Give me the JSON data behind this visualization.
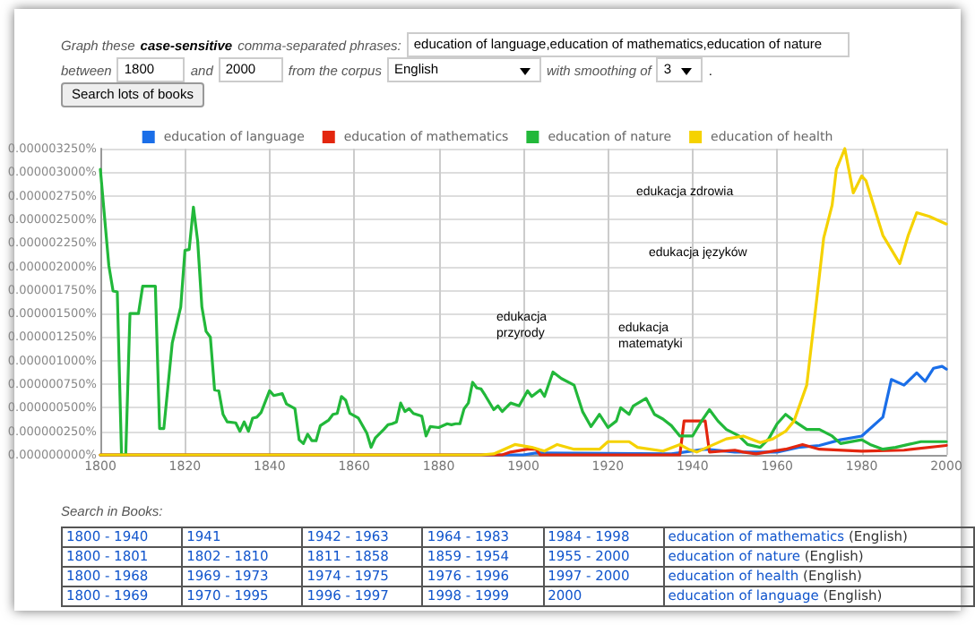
{
  "chart_data": {
    "type": "line",
    "xlim": [
      1800,
      2000
    ],
    "xticks": [
      1800,
      1820,
      1840,
      1860,
      1880,
      1900,
      1920,
      1940,
      1960,
      1980,
      2000
    ],
    "ylim": [
      0,
      3.25e-06
    ],
    "yticks": [
      {
        "value": 0,
        "label": "0.000000000%"
      },
      {
        "value": 2.5e-07,
        "label": "0.000000250%"
      },
      {
        "value": 5e-07,
        "label": "0.000000500%"
      },
      {
        "value": 7.5e-07,
        "label": "0.000000750%"
      },
      {
        "value": 1e-06,
        "label": "0.000001000%"
      },
      {
        "value": 1.25e-06,
        "label": "0.000001250%"
      },
      {
        "value": 1.5e-06,
        "label": "0.000001500%"
      },
      {
        "value": 1.75e-06,
        "label": "0.000001750%"
      },
      {
        "value": 2e-06,
        "label": "0.000002000%"
      },
      {
        "value": 2.25e-06,
        "label": "0.000002250%"
      },
      {
        "value": 2.5e-06,
        "label": "0.000002500%"
      },
      {
        "value": 2.75e-06,
        "label": "0.000002750%"
      },
      {
        "value": 3e-06,
        "label": "0.000003000%"
      },
      {
        "value": 3.25e-06,
        "label": "0.000003250%"
      }
    ],
    "grid": true,
    "legend": "top",
    "marker": "none",
    "line_style": "solid",
    "series": [
      {
        "name": "education of language",
        "color": "#1a6ee8",
        "x": [
          1800,
          1900,
          1903,
          1935,
          1943,
          1950,
          1960,
          1965,
          1970,
          1975,
          1980,
          1985,
          1987,
          1990,
          1993,
          1995,
          1997,
          1999,
          2000
        ],
        "values": [
          0,
          0,
          2e-08,
          1e-08,
          6e-08,
          3e-08,
          3e-08,
          8e-08,
          1e-07,
          1.6e-07,
          2e-07,
          4e-07,
          8e-07,
          7.4e-07,
          8.7e-07,
          7.8e-07,
          9.2e-07,
          9.4e-07,
          9.1e-07
        ]
      },
      {
        "name": "education of mathematics",
        "color": "#e3260e",
        "x": [
          1800,
          1895,
          1897,
          1901,
          1903,
          1904,
          1937,
          1938,
          1943,
          1944,
          1950,
          1952,
          1955,
          1962,
          1966,
          1970,
          1980,
          1990,
          2000
        ],
        "values": [
          0,
          0,
          3e-08,
          6e-08,
          6e-08,
          0,
          0,
          3.6e-07,
          3.6e-07,
          3e-08,
          5e-08,
          3e-08,
          1e-08,
          6e-08,
          1.1e-07,
          6e-08,
          4e-08,
          5e-08,
          1e-07
        ]
      },
      {
        "name": "education of nature",
        "color": "#22b83a",
        "x": [
          1800,
          1802,
          1803,
          1804,
          1805,
          1806,
          1807,
          1809,
          1810,
          1813,
          1814,
          1815,
          1817,
          1819,
          1820,
          1821,
          1822,
          1823,
          1824,
          1825,
          1826,
          1827,
          1828,
          1829,
          1830,
          1832,
          1833,
          1834,
          1835,
          1836,
          1837,
          1838,
          1840,
          1841,
          1843,
          1844,
          1846,
          1847,
          1848,
          1849,
          1850,
          1851,
          1852,
          1854,
          1855,
          1856,
          1857,
          1858,
          1859,
          1861,
          1863,
          1864,
          1865,
          1867,
          1868,
          1869,
          1870,
          1871,
          1872,
          1873,
          1874,
          1876,
          1877,
          1878,
          1880,
          1882,
          1883,
          1884,
          1885,
          1886,
          1887,
          1888,
          1889,
          1890,
          1891,
          1893,
          1894,
          1895,
          1897,
          1899,
          1901,
          1902,
          1904,
          1905,
          1907,
          1909,
          1912,
          1914,
          1916,
          1918,
          1920,
          1922,
          1923,
          1925,
          1926,
          1929,
          1931,
          1933,
          1935,
          1937,
          1940,
          1942,
          1944,
          1946,
          1948,
          1951,
          1953,
          1956,
          1958,
          1960,
          1962,
          1964,
          1967,
          1970,
          1973,
          1975,
          1980,
          1982,
          1985,
          1988,
          1991,
          1994,
          2000
        ],
        "values": [
          3.03e-06,
          2.01e-06,
          1.74e-06,
          1.73e-06,
          0,
          0,
          1.5e-06,
          1.5e-06,
          1.79e-06,
          1.79e-06,
          2.8e-07,
          2.8e-07,
          1.19e-06,
          1.57e-06,
          2.17e-06,
          2.18e-06,
          2.63e-06,
          2.27e-06,
          1.57e-06,
          1.31e-06,
          1.25e-06,
          6.9e-07,
          6.8e-07,
          4.3e-07,
          3.5e-07,
          3.4e-07,
          2.5e-07,
          3.5e-07,
          2.5e-07,
          3.9e-07,
          4e-07,
          4.5e-07,
          6.8e-07,
          6.3e-07,
          6.5e-07,
          5.4e-07,
          4.9e-07,
          1.6e-07,
          1.2e-07,
          2.2e-07,
          1.5e-07,
          1.5e-07,
          3.1e-07,
          3.7e-07,
          4.3e-07,
          4.4e-07,
          6.2e-07,
          5.8e-07,
          4.4e-07,
          3.9e-07,
          2.3e-07,
          8e-08,
          1.8e-07,
          2.7e-07,
          3.2e-07,
          3.3e-07,
          3.5e-07,
          5.5e-07,
          4.6e-07,
          4.9e-07,
          4.4e-07,
          4.1e-07,
          2e-07,
          3e-07,
          2.9e-07,
          3.3e-07,
          3.2e-07,
          3.3e-07,
          3.3e-07,
          4.9e-07,
          5.5e-07,
          7.7e-07,
          7.1e-07,
          7e-07,
          6.3e-07,
          4.8e-07,
          5.2e-07,
          4.6e-07,
          5.5e-07,
          5.2e-07,
          6.8e-07,
          6.2e-07,
          6.9e-07,
          6.2e-07,
          8.8e-07,
          8.1e-07,
          7.4e-07,
          4.6e-07,
          3e-07,
          4.3e-07,
          2.9e-07,
          3.6e-07,
          5e-07,
          4.3e-07,
          5.2e-07,
          6e-07,
          4.3e-07,
          3.8e-07,
          3.1e-07,
          2e-07,
          2e-07,
          3.5e-07,
          4.8e-07,
          3.6e-07,
          2.7e-07,
          2e-07,
          1.1e-07,
          8e-08,
          1.7e-07,
          3.3e-07,
          4.3e-07,
          3.6e-07,
          2.7e-07,
          2.7e-07,
          2e-07,
          1.2e-07,
          1.6e-07,
          1.1e-07,
          6e-08,
          8e-08,
          1.1e-07,
          1.4e-07,
          1.4e-07
        ]
      },
      {
        "name": "education of health",
        "color": "#f5d200",
        "x": [
          1800,
          1890,
          1893,
          1898,
          1902,
          1905,
          1908,
          1912,
          1918,
          1920,
          1925,
          1927,
          1933,
          1937,
          1939,
          1941,
          1948,
          1952,
          1956,
          1959,
          1962,
          1964,
          1967,
          1969,
          1971,
          1973,
          1974,
          1976,
          1978,
          1980,
          1981,
          1983,
          1985,
          1989,
          1991,
          1993,
          1996,
          2000
        ],
        "values": [
          0,
          0,
          1e-08,
          1.1e-07,
          8e-08,
          4e-08,
          1.1e-07,
          6e-08,
          6e-08,
          1.4e-07,
          1.4e-07,
          8e-08,
          4e-08,
          1.1e-07,
          6e-08,
          3e-08,
          1.7e-07,
          2e-07,
          1.3e-07,
          1.7e-07,
          2.5e-07,
          3.6e-07,
          7.4e-07,
          1.51e-06,
          2.3e-06,
          2.65e-06,
          3.03e-06,
          3.25e-06,
          2.78e-06,
          2.96e-06,
          2.91e-06,
          2.62e-06,
          2.33e-06,
          2.03e-06,
          2.33e-06,
          2.57e-06,
          2.53e-06,
          2.45e-06
        ]
      }
    ],
    "annotations": [
      "edukacja zdrowia",
      "edukacja języków",
      "edukacja przyrody",
      "edukacja matematyki",
      "Graph these",
      "case-sensitive",
      "comma-separated phrases:",
      "education of language,education of mathematics,education of nature",
      "between",
      "1800",
      "and",
      "2000",
      "from the corpus",
      "English",
      "with smoothing of",
      "3",
      ".",
      "Search lots of books",
      "Search in Books:",
      "1800 - 1940",
      "1941",
      "1942 - 1963",
      "1964 - 1983",
      "1984 - 1998",
      "education of mathematics (English)",
      "1800 - 1801",
      "1802 - 1810",
      "1811 - 1858",
      "1859 - 1954",
      "1955 - 2000",
      "education of nature (English)",
      "1800 - 1968",
      "1969 - 1973",
      "1974 - 1975",
      "1976 - 1996",
      "1997 - 2000",
      "education of health (English)",
      "1800 - 1969",
      "1970 - 1995",
      "1996 - 1997",
      "1998 - 1999",
      "2000",
      "education of language (English)"
    ]
  }
}
